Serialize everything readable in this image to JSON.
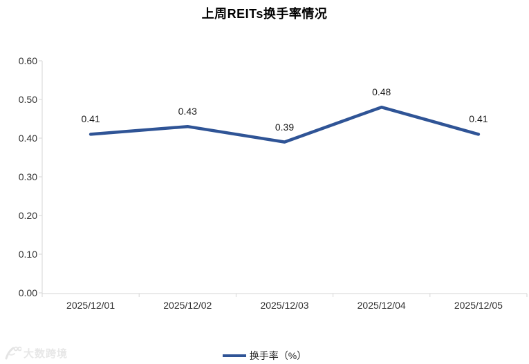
{
  "title": "上周REITs换手率情况",
  "colors": {
    "line": "#2F5496",
    "axis": "#D6D6D6",
    "axis_text": "#303030",
    "data_label_text": "#1a1a1a",
    "watermark": "#E7E7E7",
    "background": "#FFFFFF"
  },
  "chart_data": {
    "type": "line",
    "title": "上周REITs换手率情况",
    "categories": [
      "2025/12/01",
      "2025/12/02",
      "2025/12/03",
      "2025/12/04",
      "2025/12/05"
    ],
    "series": [
      {
        "name": "换手率（%）",
        "values": [
          0.41,
          0.43,
          0.39,
          0.48,
          0.41
        ]
      }
    ],
    "data_labels": [
      "0.41",
      "0.43",
      "0.39",
      "0.48",
      "0.41"
    ],
    "y_ticks": [
      "0.60",
      "0.50",
      "0.40",
      "0.30",
      "0.20",
      "0.10",
      "0.00"
    ],
    "ylim": [
      0,
      0.6
    ],
    "grid": false,
    "markers": false,
    "legend_position": "bottom",
    "legend_label": "换手率（%）"
  },
  "watermark": {
    "logo_icon": "dashu-kuajing-logo",
    "text": "大数跨境"
  }
}
